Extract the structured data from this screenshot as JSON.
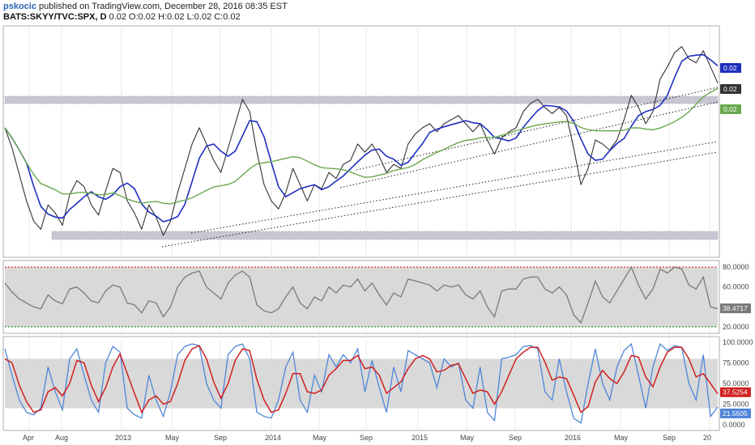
{
  "header": {
    "author": "pskocic",
    "published_text": "published on TradingView.com, December 28, 2016 08:35 EST",
    "symbol": "BATS:SKYY/TVC:SPX, D",
    "ohlc": "0.02 O:0.02 H:0.02 L:0.02 C:0.02"
  },
  "colors": {
    "price": "#333333",
    "sma_fast": "#1f2fbf",
    "sma_slow": "#6aa84f",
    "band": "#b8b4c6",
    "rsi": "#7a7a7a",
    "rsi_upper": "#e03030",
    "rsi_lower": "#2a9a2a",
    "stoch_k": "#4f86d9",
    "stoch_d": "#d02020"
  },
  "chart_data": [
    {
      "type": "line",
      "panel": "price",
      "series": [
        {
          "values": [
            0.0188,
            0.0178,
            0.0165,
            0.0152,
            0.0142,
            0.0138,
            0.015,
            0.0146,
            0.014,
            0.0155,
            0.0162,
            0.0159,
            0.015,
            0.0145,
            0.0157,
            0.0168,
            0.0166,
            0.0152,
            0.0146,
            0.0138,
            0.015,
            0.0144,
            0.0135,
            0.0142,
            0.0156,
            0.0168,
            0.018,
            0.0188,
            0.018,
            0.0172,
            0.0166,
            0.0178,
            0.019,
            0.0202,
            0.0196,
            0.0176,
            0.016,
            0.0152,
            0.0148,
            0.0156,
            0.0168,
            0.016,
            0.0152,
            0.016,
            0.0158,
            0.0166,
            0.0163,
            0.017,
            0.0172,
            0.018,
            0.0176,
            0.018,
            0.0174,
            0.0166,
            0.017,
            0.0168,
            0.018,
            0.0185,
            0.0188,
            0.019,
            0.0186,
            0.019,
            0.0192,
            0.0194,
            0.019,
            0.0186,
            0.019,
            0.0182,
            0.0175,
            0.0183,
            0.0186,
            0.0188,
            0.0196,
            0.02,
            0.0202,
            0.0198,
            0.0195,
            0.0198,
            0.0194,
            0.0178,
            0.016,
            0.0168,
            0.0182,
            0.018,
            0.0177,
            0.0182,
            0.0192,
            0.0204,
            0.0198,
            0.019,
            0.0196,
            0.0212,
            0.0218,
            0.0225,
            0.0228,
            0.0222,
            0.022,
            0.0226,
            0.0218,
            0.021
          ]
        }
      ]
    },
    {
      "type": "line",
      "panel": "rsi",
      "ylim": [
        15,
        85
      ],
      "tick_labels": [
        "80.0000",
        "60.0000",
        "20.0000"
      ],
      "series": [
        {
          "values": [
            64,
            55,
            48,
            44,
            40,
            38,
            52,
            46,
            43,
            58,
            60,
            54,
            46,
            44,
            56,
            62,
            60,
            44,
            42,
            34,
            46,
            44,
            30,
            40,
            60,
            70,
            74,
            76,
            60,
            54,
            48,
            64,
            72,
            76,
            70,
            42,
            36,
            34,
            38,
            50,
            60,
            44,
            38,
            50,
            46,
            60,
            54,
            62,
            60,
            68,
            56,
            64,
            52,
            42,
            54,
            50,
            68,
            66,
            64,
            62,
            56,
            62,
            60,
            62,
            52,
            48,
            56,
            40,
            30,
            56,
            58,
            58,
            68,
            70,
            70,
            58,
            54,
            60,
            52,
            32,
            24,
            44,
            66,
            50,
            44,
            56,
            68,
            80,
            62,
            48,
            58,
            78,
            74,
            80,
            78,
            62,
            58,
            70,
            40,
            38
          ]
        }
      ]
    },
    {
      "type": "line",
      "panel": "stochastic",
      "ylim": [
        -5,
        105
      ],
      "tick_labels": [
        "100.0000",
        "75.0000",
        "50.0000",
        "25.0000",
        "0.0000"
      ],
      "series": [
        {
          "values": [
            92,
            60,
            30,
            15,
            12,
            20,
            70,
            40,
            18,
            80,
            92,
            60,
            30,
            15,
            75,
            95,
            88,
            20,
            12,
            8,
            60,
            30,
            10,
            40,
            85,
            95,
            98,
            96,
            50,
            30,
            20,
            85,
            95,
            98,
            80,
            15,
            10,
            8,
            30,
            70,
            88,
            30,
            15,
            60,
            40,
            85,
            70,
            85,
            75,
            92,
            40,
            78,
            45,
            15,
            70,
            40,
            90,
            85,
            80,
            75,
            45,
            80,
            70,
            75,
            30,
            20,
            70,
            15,
            5,
            80,
            82,
            85,
            95,
            96,
            92,
            40,
            30,
            80,
            40,
            8,
            2,
            50,
            92,
            50,
            30,
            70,
            90,
            98,
            60,
            20,
            70,
            98,
            90,
            96,
            94,
            50,
            30,
            85,
            10,
            21.55
          ]
        },
        {
          "values": [
            80,
            75,
            48,
            28,
            15,
            18,
            40,
            45,
            35,
            50,
            78,
            75,
            48,
            28,
            45,
            70,
            86,
            62,
            38,
            15,
            30,
            35,
            25,
            28,
            50,
            78,
            92,
            96,
            80,
            52,
            32,
            50,
            78,
            92,
            90,
            55,
            30,
            15,
            18,
            38,
            62,
            62,
            40,
            38,
            42,
            60,
            68,
            78,
            78,
            84,
            68,
            70,
            60,
            38,
            45,
            52,
            68,
            80,
            84,
            80,
            64,
            66,
            72,
            74,
            56,
            38,
            42,
            40,
            25,
            40,
            60,
            80,
            88,
            94,
            94,
            76,
            54,
            58,
            56,
            36,
            15,
            22,
            52,
            66,
            56,
            50,
            64,
            84,
            82,
            58,
            46,
            70,
            88,
            94,
            94,
            80,
            58,
            62,
            50,
            37.53
          ]
        }
      ]
    }
  ],
  "axes": {
    "price_tags": {
      "blue": "0.02",
      "last": "0.02",
      "green": "0.02"
    },
    "rsi_last": "38.4717",
    "stoch_k_last": "21.5505",
    "stoch_d_last": "37.5254",
    "x_labels": [
      "Apr",
      "Aug",
      "2013",
      "May",
      "Sep",
      "2014",
      "May",
      "Sep",
      "2015",
      "May",
      "Sep",
      "2016",
      "May",
      "Sep",
      "20"
    ]
  }
}
